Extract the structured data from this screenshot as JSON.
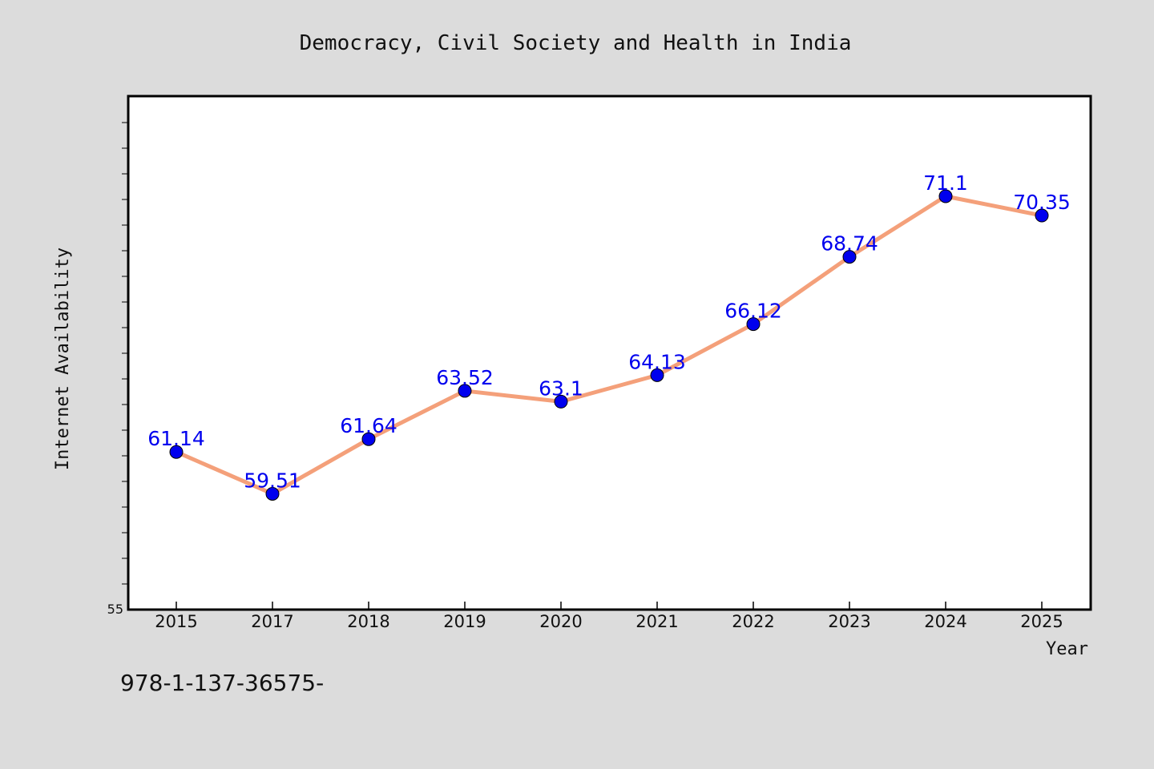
{
  "chart_data": {
    "type": "line",
    "title": "Democracy, Civil Society and Health in India",
    "xlabel": "Year",
    "ylabel": "Internet Availability",
    "categories": [
      "2015",
      "2017",
      "2018",
      "2019",
      "2020",
      "2021",
      "2022",
      "2023",
      "2024",
      "2025"
    ],
    "series": [
      {
        "values": [
          61.14,
          59.51,
          61.64,
          63.52,
          63.1,
          64.13,
          66.12,
          68.74,
          71.1,
          70.35
        ],
        "data_labels": [
          "61.14",
          "59.51",
          "61.64",
          "63.52",
          "63.1",
          "64.13",
          "66.12",
          "68.74",
          "71.1",
          "70.35"
        ]
      }
    ],
    "y_tick_labels": [
      "55"
    ],
    "ylim": [
      55,
      75
    ],
    "grid": false,
    "colors": {
      "line": "#f4a07a",
      "marker": "#0000ee",
      "label": "#0000ee",
      "frame": "#000000",
      "background": "#dcdcdc",
      "plot_background": "#ffffff"
    }
  },
  "footnote": "978-1-137-36575-"
}
